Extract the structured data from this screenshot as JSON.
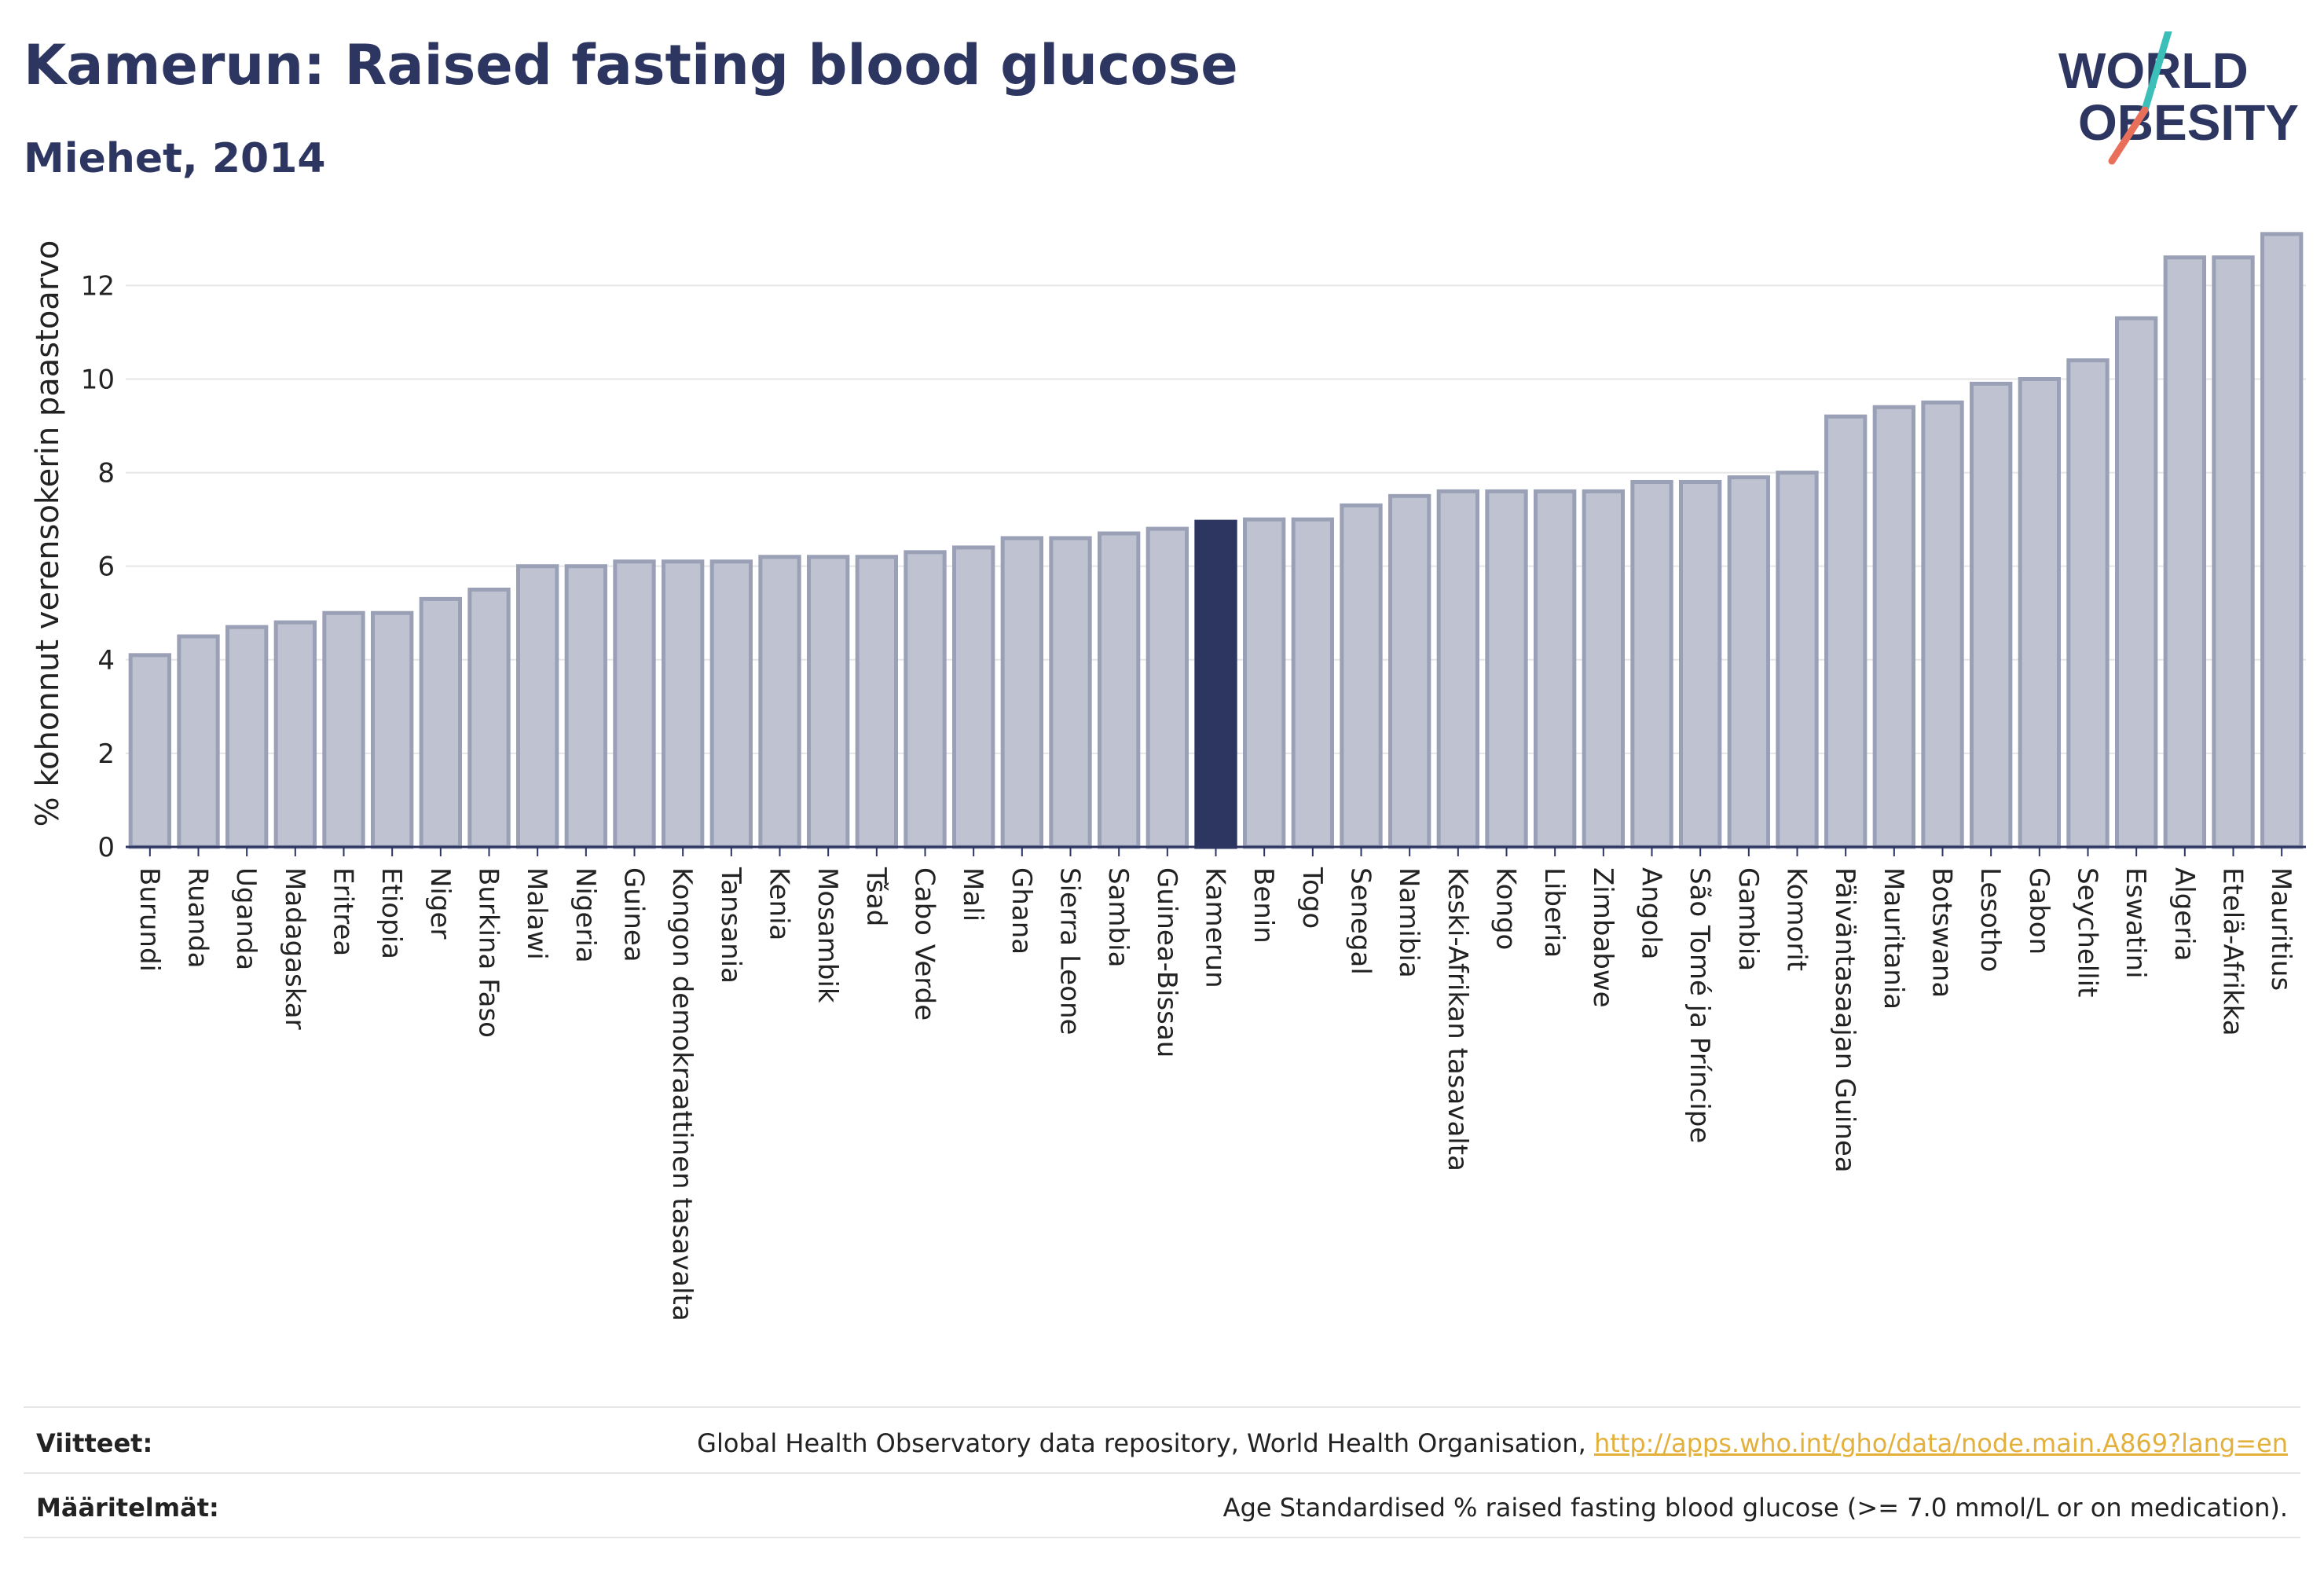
{
  "header": {
    "title": "Kamerun: Raised fasting blood glucose",
    "subtitle": "Miehet, 2014"
  },
  "logo": {
    "line1": "WORLD",
    "line2": "OBESITY"
  },
  "chart_data": {
    "type": "bar",
    "ylabel": "% kohonnut verensokerin paastoarvo",
    "xlabel": "",
    "ylim": [
      0,
      13.4
    ],
    "yticks": [
      0,
      2,
      4,
      6,
      8,
      10,
      12
    ],
    "grid": true,
    "highlight": "Kamerun",
    "colors": {
      "bar": "#bfc3d1",
      "bar_stroke": "#9aa0b6",
      "highlight": "#2d3561",
      "grid": "#e6e6e6",
      "axis": "#2d3561"
    },
    "categories": [
      "Burundi",
      "Ruanda",
      "Uganda",
      "Madagaskar",
      "Eritrea",
      "Etiopia",
      "Niger",
      "Burkina Faso",
      "Malawi",
      "Nigeria",
      "Guinea",
      "Kongon demokraattinen tasavalta",
      "Tansania",
      "Kenia",
      "Mosambik",
      "Tšad",
      "Cabo Verde",
      "Mali",
      "Ghana",
      "Sierra Leone",
      "Sambia",
      "Guinea-Bissau",
      "Kamerun",
      "Benin",
      "Togo",
      "Senegal",
      "Namibia",
      "Keski-Afrikan tasavalta",
      "Kongo",
      "Liberia",
      "Zimbabwe",
      "Angola",
      "São Tomé ja Príncipe",
      "Gambia",
      "Komorit",
      "Päiväntasaajan Guinea",
      "Mauritania",
      "Botswana",
      "Lesotho",
      "Gabon",
      "Seychellit",
      "Eswatini",
      "Algeria",
      "Etelä-Afrikka",
      "Mauritius"
    ],
    "values": [
      4.1,
      4.5,
      4.7,
      4.8,
      5.0,
      5.0,
      5.3,
      5.5,
      6.0,
      6.0,
      6.1,
      6.1,
      6.1,
      6.2,
      6.2,
      6.2,
      6.3,
      6.4,
      6.6,
      6.6,
      6.7,
      6.8,
      6.95,
      7.0,
      7.0,
      7.3,
      7.5,
      7.6,
      7.6,
      7.6,
      7.6,
      7.8,
      7.8,
      7.9,
      8.0,
      9.2,
      9.4,
      9.5,
      9.9,
      10.0,
      10.4,
      11.3,
      12.6,
      12.6,
      13.1
    ]
  },
  "footer": {
    "sources_label": "Viitteet:",
    "sources_text": "Global Health Observatory data repository, World Health Organisation, ",
    "sources_link": "http://apps.who.int/gho/data/node.main.A869?lang=en",
    "definitions_label": "Määritelmät:",
    "definitions_text": "Age Standardised % raised fasting blood glucose (>= 7.0 mmol/L or on medication)."
  }
}
